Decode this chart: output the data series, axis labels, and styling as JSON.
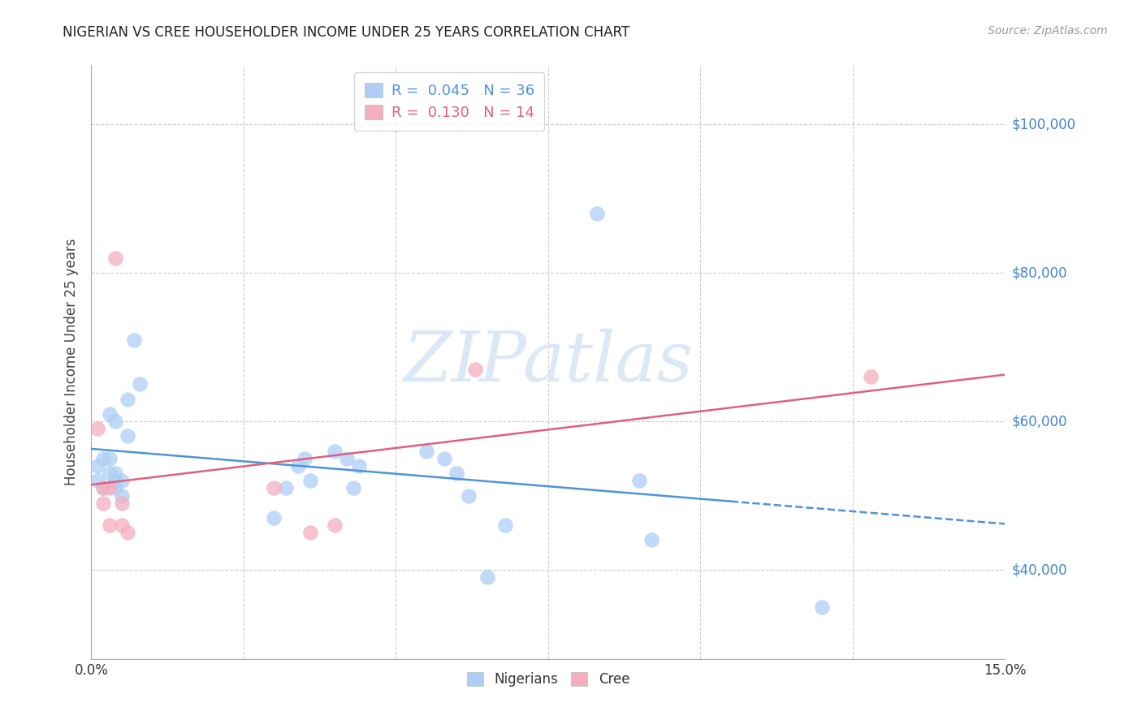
{
  "title": "NIGERIAN VS CREE HOUSEHOLDER INCOME UNDER 25 YEARS CORRELATION CHART",
  "source": "Source: ZipAtlas.com",
  "ylabel_label": "Householder Income Under 25 years",
  "ylabel_ticks": [
    40000,
    60000,
    80000,
    100000
  ],
  "ylabel_tick_labels": [
    "$40,000",
    "$60,000",
    "$80,000",
    "$100,000"
  ],
  "xlim": [
    0.0,
    0.15
  ],
  "ylim": [
    28000,
    108000
  ],
  "nigerian_R": 0.045,
  "nigerian_N": 36,
  "cree_R": 0.13,
  "cree_N": 14,
  "nigerian_color": "#aecef5",
  "cree_color": "#f5aec0",
  "nigerian_line_color": "#4d94db",
  "cree_line_color": "#e06080",
  "watermark": "ZIPatlas",
  "nigerian_x": [
    0.001,
    0.001,
    0.002,
    0.002,
    0.003,
    0.003,
    0.003,
    0.004,
    0.004,
    0.004,
    0.004,
    0.005,
    0.005,
    0.006,
    0.006,
    0.007,
    0.008,
    0.03,
    0.032,
    0.034,
    0.035,
    0.036,
    0.04,
    0.042,
    0.043,
    0.044,
    0.055,
    0.058,
    0.06,
    0.062,
    0.065,
    0.068,
    0.083,
    0.09,
    0.092,
    0.12
  ],
  "nigerian_y": [
    52000,
    54000,
    51000,
    55000,
    53000,
    55000,
    61000,
    60000,
    53000,
    52000,
    51000,
    50000,
    52000,
    63000,
    58000,
    71000,
    65000,
    47000,
    51000,
    54000,
    55000,
    52000,
    56000,
    55000,
    51000,
    54000,
    56000,
    55000,
    53000,
    50000,
    39000,
    46000,
    88000,
    52000,
    44000,
    35000
  ],
  "cree_x": [
    0.001,
    0.002,
    0.002,
    0.003,
    0.003,
    0.004,
    0.005,
    0.005,
    0.006,
    0.03,
    0.036,
    0.04,
    0.063,
    0.128
  ],
  "cree_y": [
    59000,
    51000,
    49000,
    46000,
    51000,
    82000,
    46000,
    49000,
    45000,
    51000,
    45000,
    46000,
    67000,
    66000
  ],
  "background_color": "#ffffff",
  "grid_color": "#cccccc"
}
